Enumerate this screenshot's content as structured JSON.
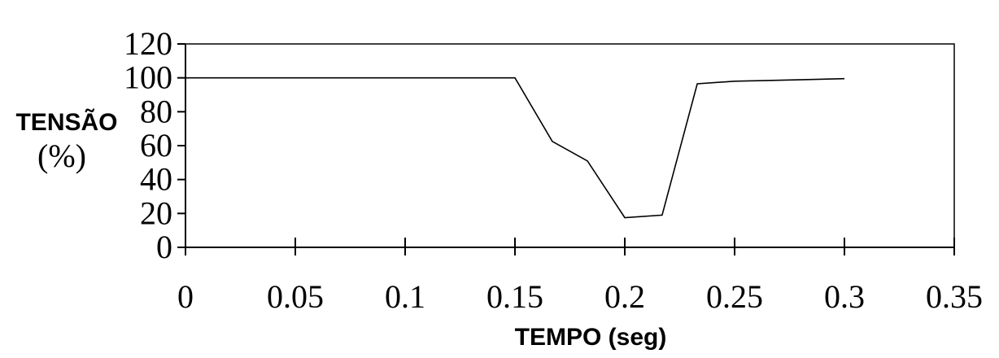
{
  "chart_data": {
    "type": "line",
    "title": "",
    "xlabel": "TEMPO (seg)",
    "ylabel_line1": "TENSÃO",
    "ylabel_line2": "(%)",
    "xlim": [
      0,
      0.35
    ],
    "ylim": [
      0,
      120
    ],
    "x_ticks": [
      0,
      0.05,
      0.1,
      0.15,
      0.2,
      0.25,
      0.3,
      0.35
    ],
    "x_tick_labels": [
      "0",
      "0.05",
      "0.1",
      "0.15",
      "0.2",
      "0.25",
      "0.3",
      "0.35"
    ],
    "y_ticks": [
      0,
      20,
      40,
      60,
      80,
      100,
      120
    ],
    "y_tick_labels": [
      "0",
      "20",
      "40",
      "60",
      "80",
      "100",
      "120"
    ],
    "grid": false,
    "legend": "none",
    "line_color": "#000000",
    "series": [
      {
        "x": [
          0,
          0.05,
          0.1,
          0.15,
          0.167,
          0.183,
          0.2,
          0.217,
          0.233,
          0.25,
          0.267,
          0.283,
          0.3
        ],
        "y": [
          100,
          100,
          100,
          100,
          62.5,
          51,
          17.5,
          19,
          96.5,
          98,
          98.5,
          99,
          99.5
        ]
      }
    ]
  }
}
